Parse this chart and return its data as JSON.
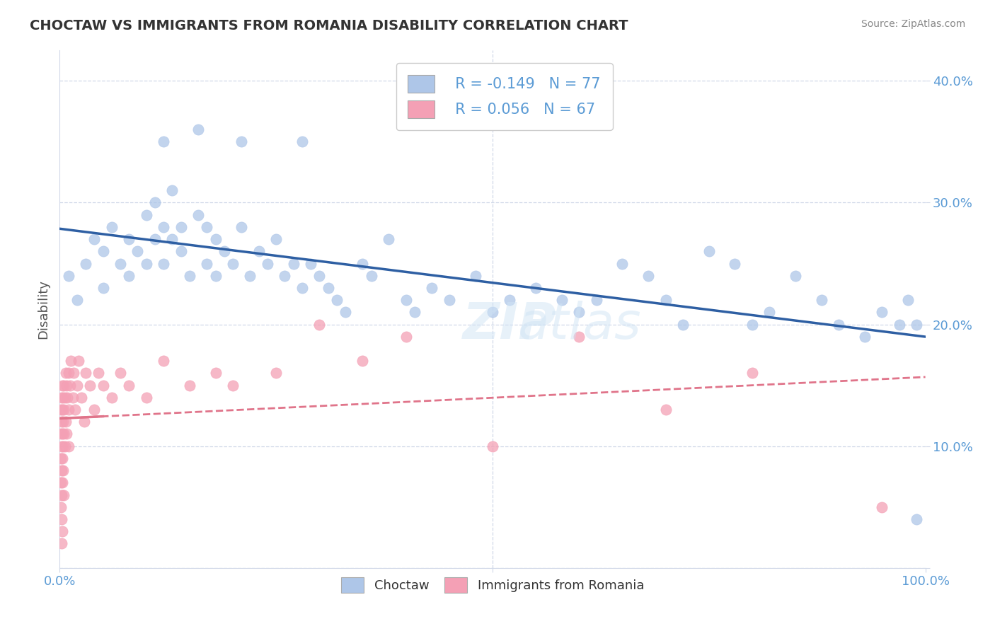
{
  "title": "CHOCTAW VS IMMIGRANTS FROM ROMANIA DISABILITY CORRELATION CHART",
  "source": "Source: ZipAtlas.com",
  "ylabel": "Disability",
  "xlim": [
    0.0,
    1.0
  ],
  "ylim": [
    0.0,
    0.425
  ],
  "yticks": [
    0.0,
    0.1,
    0.2,
    0.3,
    0.4
  ],
  "legend_labels": [
    "Choctaw",
    "Immigrants from Romania"
  ],
  "choctaw_R": -0.149,
  "choctaw_N": 77,
  "romania_R": 0.056,
  "romania_N": 67,
  "choctaw_color": "#aec6e8",
  "romania_color": "#f4a0b5",
  "choctaw_line_color": "#2e5fa3",
  "romania_line_color": "#e0748a",
  "background_color": "#ffffff",
  "grid_color": "#d0d8e8",
  "title_color": "#333333",
  "axis_color": "#5b9bd5",
  "watermark": "ZIPatlas",
  "choctaw_x": [
    0.01,
    0.02,
    0.03,
    0.04,
    0.05,
    0.05,
    0.06,
    0.07,
    0.08,
    0.08,
    0.09,
    0.1,
    0.1,
    0.11,
    0.11,
    0.12,
    0.12,
    0.13,
    0.13,
    0.14,
    0.14,
    0.15,
    0.16,
    0.17,
    0.17,
    0.18,
    0.18,
    0.19,
    0.2,
    0.21,
    0.22,
    0.23,
    0.24,
    0.25,
    0.26,
    0.27,
    0.28,
    0.29,
    0.3,
    0.31,
    0.32,
    0.33,
    0.35,
    0.36,
    0.38,
    0.4,
    0.41,
    0.43,
    0.45,
    0.48,
    0.5,
    0.52,
    0.55,
    0.58,
    0.6,
    0.62,
    0.65,
    0.68,
    0.7,
    0.72,
    0.75,
    0.78,
    0.8,
    0.82,
    0.85,
    0.88,
    0.9,
    0.93,
    0.95,
    0.97,
    0.98,
    0.99,
    0.99,
    0.12,
    0.16,
    0.21,
    0.28
  ],
  "choctaw_y": [
    0.24,
    0.22,
    0.25,
    0.27,
    0.23,
    0.26,
    0.28,
    0.25,
    0.24,
    0.27,
    0.26,
    0.29,
    0.25,
    0.3,
    0.27,
    0.28,
    0.25,
    0.31,
    0.27,
    0.26,
    0.28,
    0.24,
    0.29,
    0.25,
    0.28,
    0.27,
    0.24,
    0.26,
    0.25,
    0.28,
    0.24,
    0.26,
    0.25,
    0.27,
    0.24,
    0.25,
    0.23,
    0.25,
    0.24,
    0.23,
    0.22,
    0.21,
    0.25,
    0.24,
    0.27,
    0.22,
    0.21,
    0.23,
    0.22,
    0.24,
    0.21,
    0.22,
    0.23,
    0.22,
    0.21,
    0.22,
    0.25,
    0.24,
    0.22,
    0.2,
    0.26,
    0.25,
    0.2,
    0.21,
    0.24,
    0.22,
    0.2,
    0.19,
    0.21,
    0.2,
    0.22,
    0.04,
    0.2,
    0.35,
    0.36,
    0.35,
    0.35
  ],
  "romania_x": [
    0.001,
    0.001,
    0.001,
    0.001,
    0.001,
    0.002,
    0.002,
    0.002,
    0.002,
    0.002,
    0.002,
    0.002,
    0.003,
    0.003,
    0.003,
    0.003,
    0.003,
    0.003,
    0.004,
    0.004,
    0.004,
    0.004,
    0.005,
    0.005,
    0.005,
    0.005,
    0.006,
    0.006,
    0.007,
    0.007,
    0.008,
    0.008,
    0.009,
    0.01,
    0.01,
    0.01,
    0.012,
    0.013,
    0.015,
    0.016,
    0.018,
    0.02,
    0.022,
    0.025,
    0.028,
    0.03,
    0.035,
    0.04,
    0.045,
    0.05,
    0.06,
    0.07,
    0.08,
    0.1,
    0.12,
    0.15,
    0.18,
    0.2,
    0.25,
    0.3,
    0.35,
    0.4,
    0.5,
    0.6,
    0.7,
    0.8,
    0.95
  ],
  "romania_y": [
    0.13,
    0.11,
    0.09,
    0.07,
    0.05,
    0.14,
    0.12,
    0.1,
    0.08,
    0.06,
    0.04,
    0.02,
    0.15,
    0.13,
    0.11,
    0.09,
    0.07,
    0.03,
    0.14,
    0.12,
    0.1,
    0.08,
    0.15,
    0.13,
    0.11,
    0.06,
    0.14,
    0.1,
    0.16,
    0.12,
    0.15,
    0.11,
    0.14,
    0.16,
    0.13,
    0.1,
    0.15,
    0.17,
    0.14,
    0.16,
    0.13,
    0.15,
    0.17,
    0.14,
    0.12,
    0.16,
    0.15,
    0.13,
    0.16,
    0.15,
    0.14,
    0.16,
    0.15,
    0.14,
    0.17,
    0.15,
    0.16,
    0.15,
    0.16,
    0.2,
    0.17,
    0.19,
    0.1,
    0.19,
    0.13,
    0.16,
    0.05
  ]
}
